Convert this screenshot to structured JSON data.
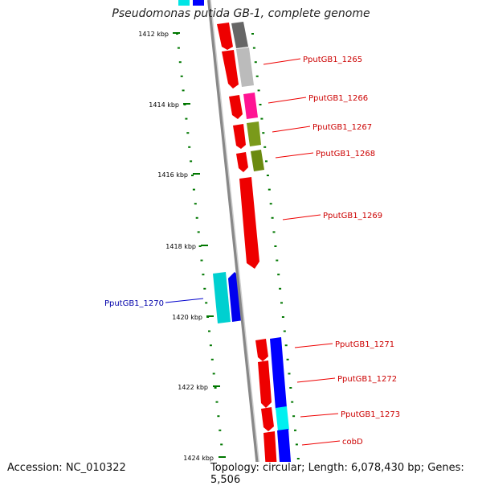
{
  "title": "Pseudomonas putida GB-1, complete genome",
  "footer": {
    "accession": "Accession: NC_010322",
    "topology": "Topology: circular; Length: 6,078,430 bp; Genes: 5,506"
  },
  "colors": {
    "forward_gene": "#ff0000",
    "reverse_gene": "#0000ff",
    "forward_label": "#cc0000",
    "reverse_label": "#0000aa",
    "tick": "#007700",
    "backbone": "#888888"
  },
  "kbp_ticks": [
    "1412 kbp",
    "1414 kbp",
    "1416 kbp",
    "1418 kbp",
    "1420 kbp",
    "1422 kbp",
    "1424 kbp"
  ],
  "gene_labels": [
    {
      "text": "PputGB1_1265",
      "strand": "forward"
    },
    {
      "text": "PputGB1_1266",
      "strand": "forward"
    },
    {
      "text": "PputGB1_1267",
      "strand": "forward"
    },
    {
      "text": "PputGB1_1268",
      "strand": "forward"
    },
    {
      "text": "PputGB1_1269",
      "strand": "forward"
    },
    {
      "text": "PputGB1_1270",
      "strand": "reverse"
    },
    {
      "text": "PputGB1_1271",
      "strand": "forward"
    },
    {
      "text": "PputGB1_1272",
      "strand": "forward"
    },
    {
      "text": "PputGB1_1273",
      "strand": "forward"
    },
    {
      "text": "cobD",
      "strand": "forward"
    }
  ]
}
